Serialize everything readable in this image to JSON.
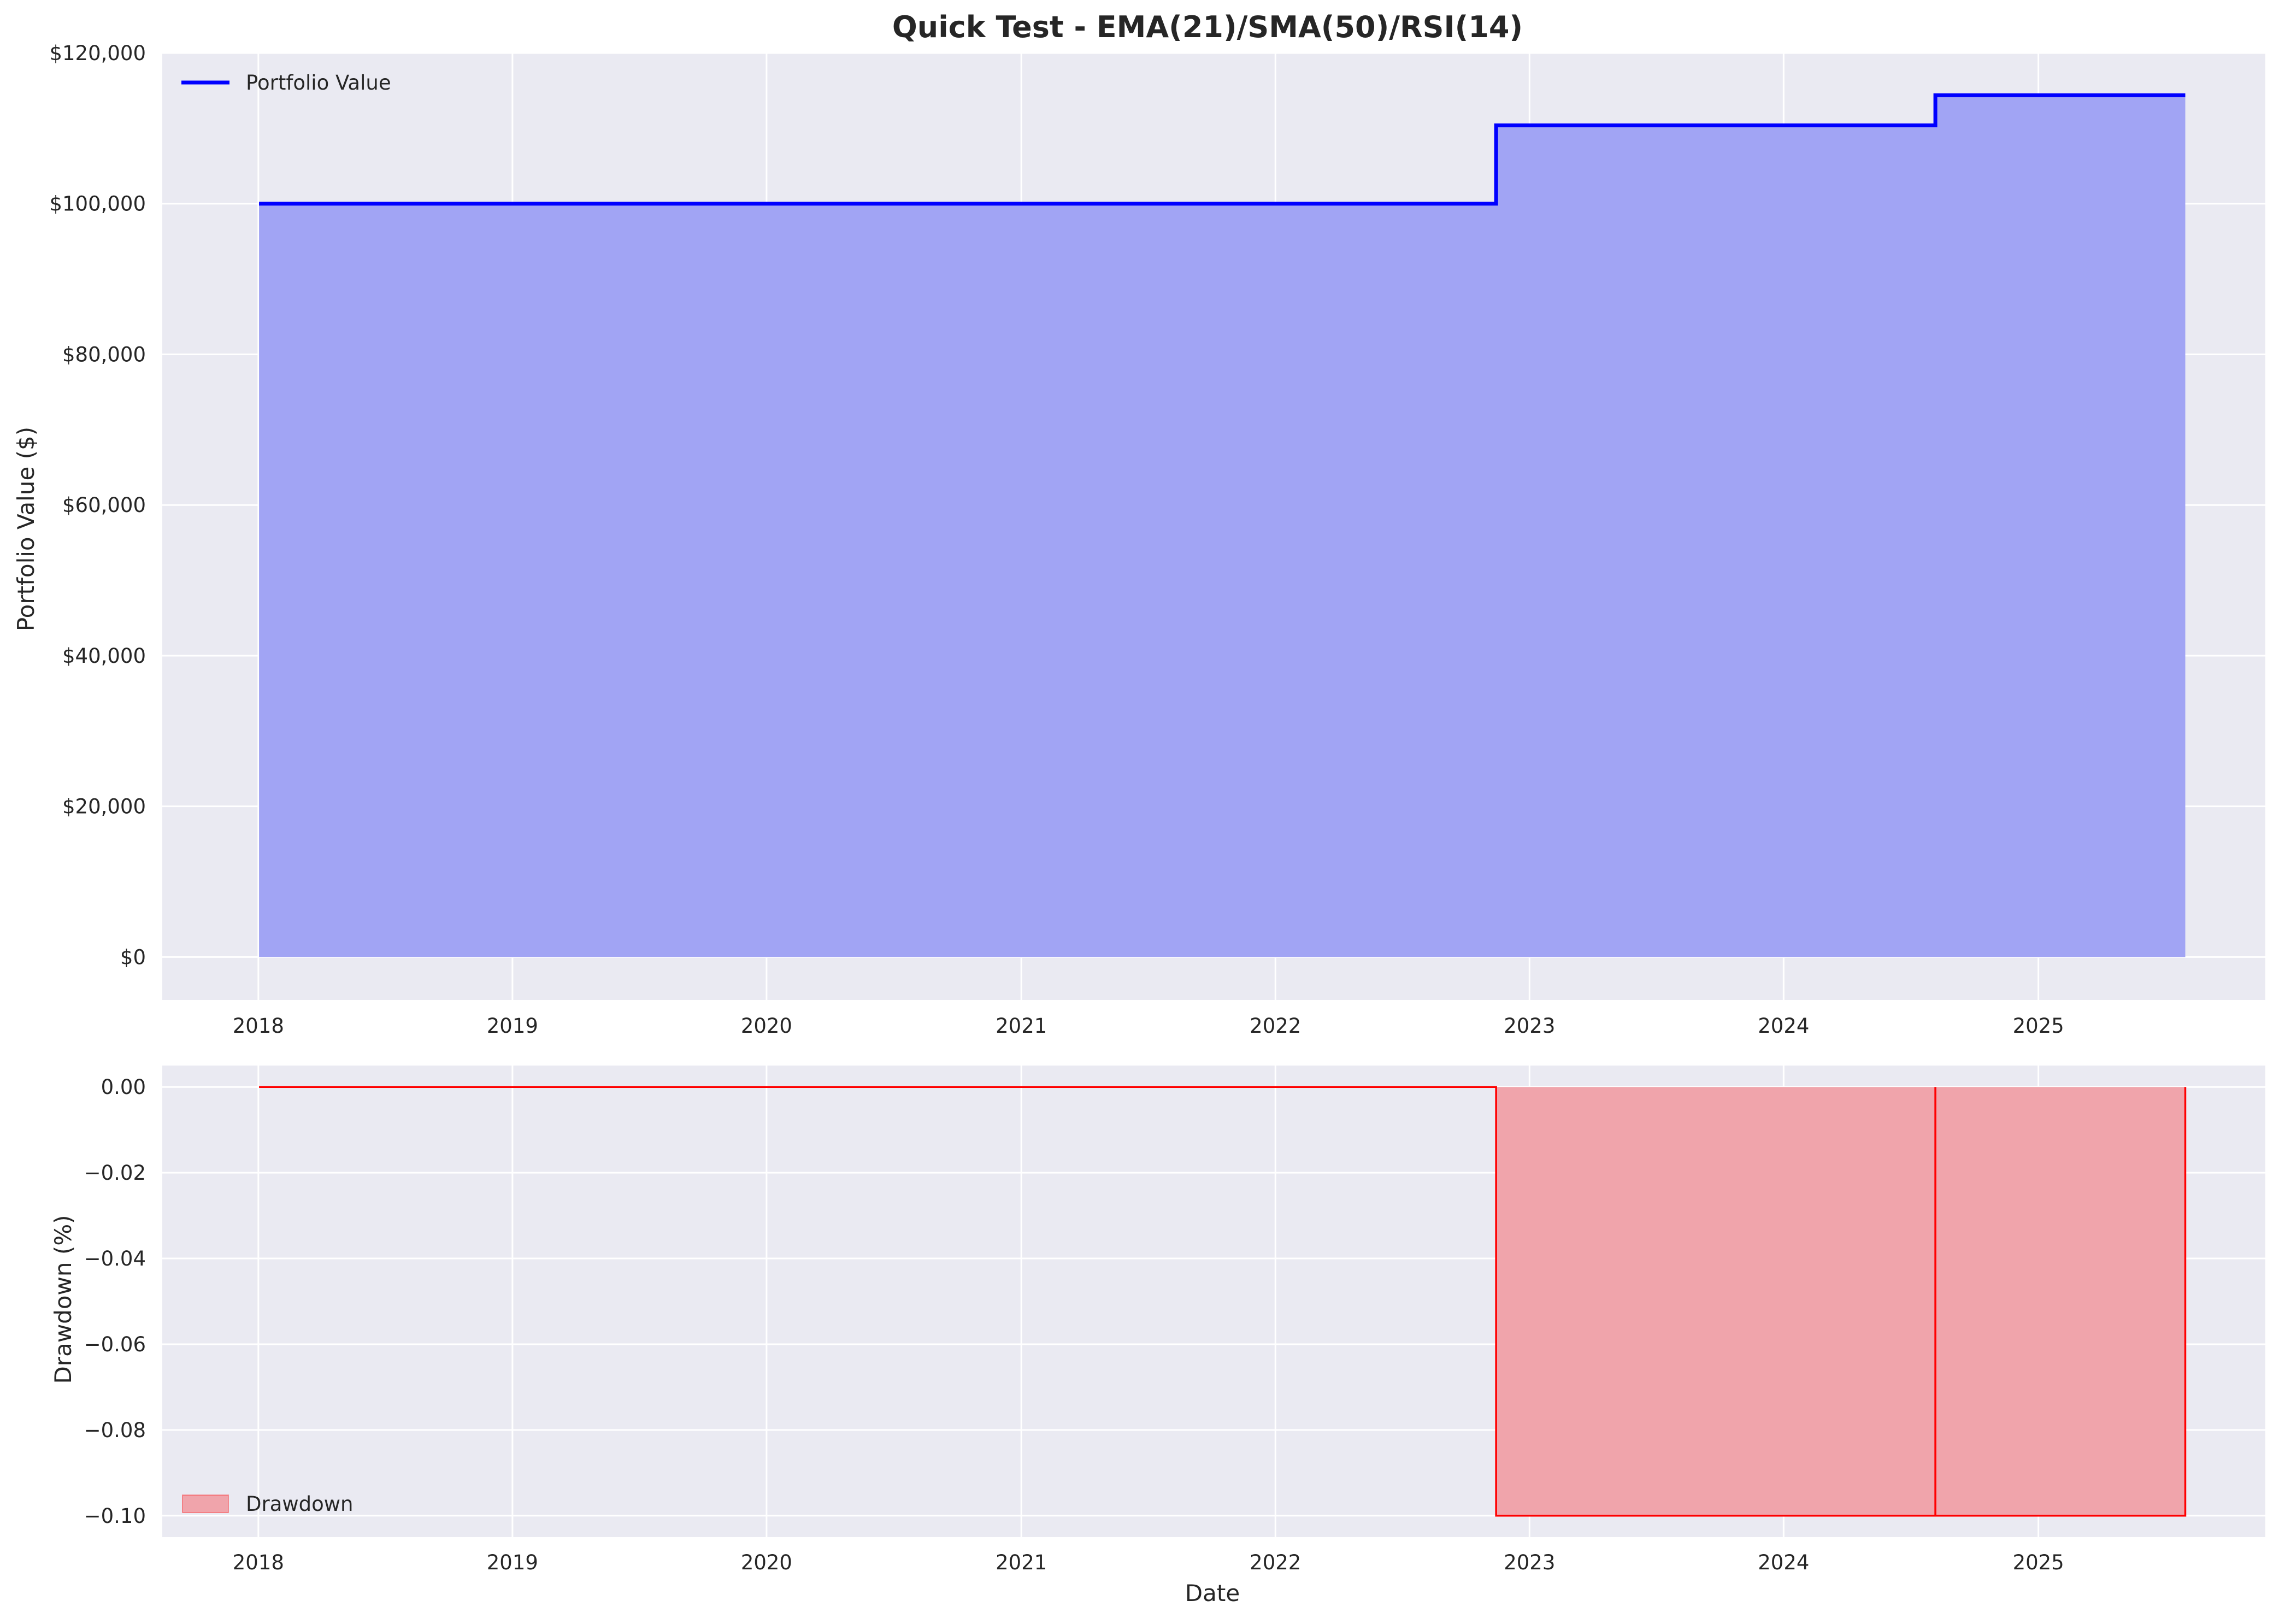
{
  "chart_data": [
    {
      "type": "area",
      "title": "Quick Test - EMA(21)/SMA(50)/RSI(14)",
      "xlabel": "",
      "ylabel": "Portfolio Value ($)",
      "x_ticks": [
        "2018",
        "2019",
        "2020",
        "2021",
        "2022",
        "2023",
        "2024",
        "2025"
      ],
      "y_ticks": [
        "$0",
        "$20,000",
        "$40,000",
        "$60,000",
        "$80,000",
        "$100,000",
        "$120,000"
      ],
      "xlim": [
        "2017-08-16",
        "2025-11-23"
      ],
      "ylim": [
        -5700,
        120000
      ],
      "grid": true,
      "legend_position": "top-left",
      "series": [
        {
          "name": "Portfolio Value",
          "color": "#0000ff",
          "fill_color": "#a1a4f4",
          "step": true,
          "points": [
            {
              "x": "2018-01-02",
              "y": 100000
            },
            {
              "x": "2022-11-14",
              "y": 100000
            },
            {
              "x": "2022-11-14",
              "y": 110400
            },
            {
              "x": "2024-08-06",
              "y": 110400
            },
            {
              "x": "2024-08-06",
              "y": 114400
            },
            {
              "x": "2025-07-31",
              "y": 114400
            }
          ]
        }
      ]
    },
    {
      "type": "area",
      "title": "",
      "xlabel": "Date",
      "ylabel": "Drawdown (%)",
      "x_ticks": [
        "2018",
        "2019",
        "2020",
        "2021",
        "2022",
        "2023",
        "2024",
        "2025"
      ],
      "y_ticks": [
        "−0.10",
        "−0.08",
        "−0.06",
        "−0.04",
        "−0.02",
        "0.00"
      ],
      "xlim": [
        "2017-08-16",
        "2025-11-23"
      ],
      "ylim": [
        -0.105,
        0.005
      ],
      "grid": true,
      "legend_position": "bottom-left",
      "series": [
        {
          "name": "Drawdown",
          "color": "#ff0000",
          "fill_color": "#f0a4ab",
          "points": [
            {
              "x": "2018-01-02",
              "y": 0
            },
            {
              "x": "2022-11-14",
              "y": 0
            },
            {
              "x": "2022-11-14",
              "y": -0.1
            },
            {
              "x": "2024-08-06",
              "y": -0.1
            },
            {
              "x": "2024-08-06",
              "y": 0
            },
            {
              "x": "2024-08-06",
              "y": -0.1
            },
            {
              "x": "2025-07-31",
              "y": -0.1
            },
            {
              "x": "2025-07-31",
              "y": 0
            }
          ]
        }
      ]
    }
  ]
}
